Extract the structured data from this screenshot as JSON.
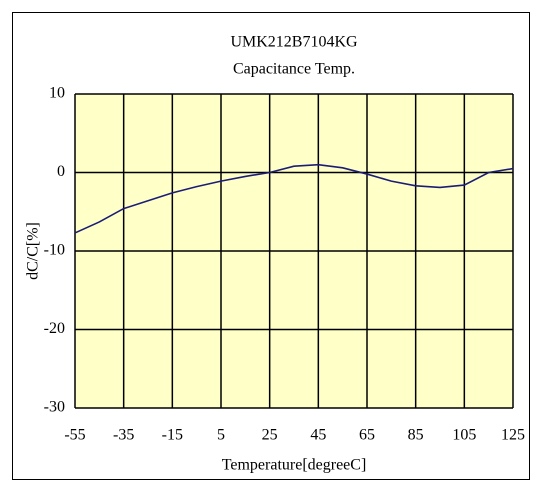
{
  "chart_data": {
    "type": "line",
    "title": "UMK212B7104KG",
    "subtitle": "Capacitance Temp.",
    "xlabel": "Temperature[degreeC]",
    "ylabel": "dC/C[%]",
    "x": [
      -55,
      -45,
      -35,
      -25,
      -15,
      -5,
      5,
      15,
      25,
      35,
      45,
      55,
      65,
      75,
      85,
      95,
      105,
      115,
      125
    ],
    "series": [
      {
        "name": "UMK212B7104KG",
        "color": "#1c1c78",
        "values": [
          -7.7,
          -6.3,
          -4.6,
          -3.6,
          -2.6,
          -1.8,
          -1.1,
          -0.5,
          0,
          0.8,
          1.0,
          0.6,
          -0.2,
          -1.1,
          -1.7,
          -1.9,
          -1.6,
          0,
          0.5
        ]
      }
    ],
    "xlim": [
      -55,
      125
    ],
    "xticks": [
      -55,
      -35,
      -15,
      5,
      25,
      45,
      65,
      85,
      105,
      125
    ],
    "ylim": [
      -30,
      10
    ],
    "yticks": [
      -30,
      -20,
      -10,
      0,
      10
    ],
    "grid": true,
    "background": "#ffffc8"
  }
}
